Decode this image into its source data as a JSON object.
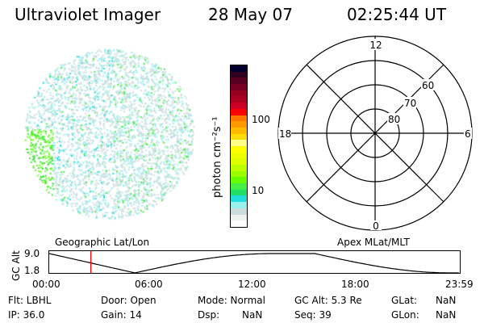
{
  "header": {
    "title": "Ultraviolet Imager",
    "date": "28 May 07",
    "time": "02:25:44 UT"
  },
  "colorbar": {
    "label": "photon cm⁻²s⁻¹",
    "ticks": [
      "100",
      "10"
    ],
    "colors": [
      "#000033",
      "#330022",
      "#550022",
      "#770022",
      "#990022",
      "#aa0022",
      "#cc0022",
      "#ff0000",
      "#ff7700",
      "#ff9900",
      "#ffbb00",
      "#ffdd00",
      "#ffff88",
      "#ffff00",
      "#eeff00",
      "#ddff00",
      "#bbff00",
      "#99ff00",
      "#66ff00",
      "#44ee44",
      "#22dd66",
      "#22dddd",
      "#99eeee",
      "#ccdddd",
      "#eef2ee",
      "#ffffff"
    ]
  },
  "polar": {
    "mlt_labels": {
      "top": "12",
      "bottom": "0",
      "left": "18",
      "right": "6"
    },
    "lat_labels": [
      "80",
      "70",
      "60"
    ]
  },
  "timeline": {
    "left_label": "Geographic Lat/Lon",
    "right_label": "Apex MLat/MLT",
    "ylabel": "GC Alt",
    "ymax": "9.0",
    "ymin": "1.8",
    "xticks": [
      "00:00",
      "06:00",
      "12:00",
      "18:00",
      "23:59"
    ],
    "current_hour": 2.43,
    "marker_color": "#ff0000"
  },
  "status": {
    "flt": "Flt: LBHL",
    "ip": "IP: 36.0",
    "door": "Door: Open",
    "gain": "Gain: 14",
    "mode": "Mode: Normal",
    "dsp_label": "Dsp:",
    "dsp_value": "NaN",
    "gcalt": "GC Alt: 5.3 Re",
    "seq": "Seq: 39",
    "glat_label": "GLat:",
    "glat_value": "NaN",
    "glon_label": "GLon:",
    "glon_value": "NaN"
  }
}
